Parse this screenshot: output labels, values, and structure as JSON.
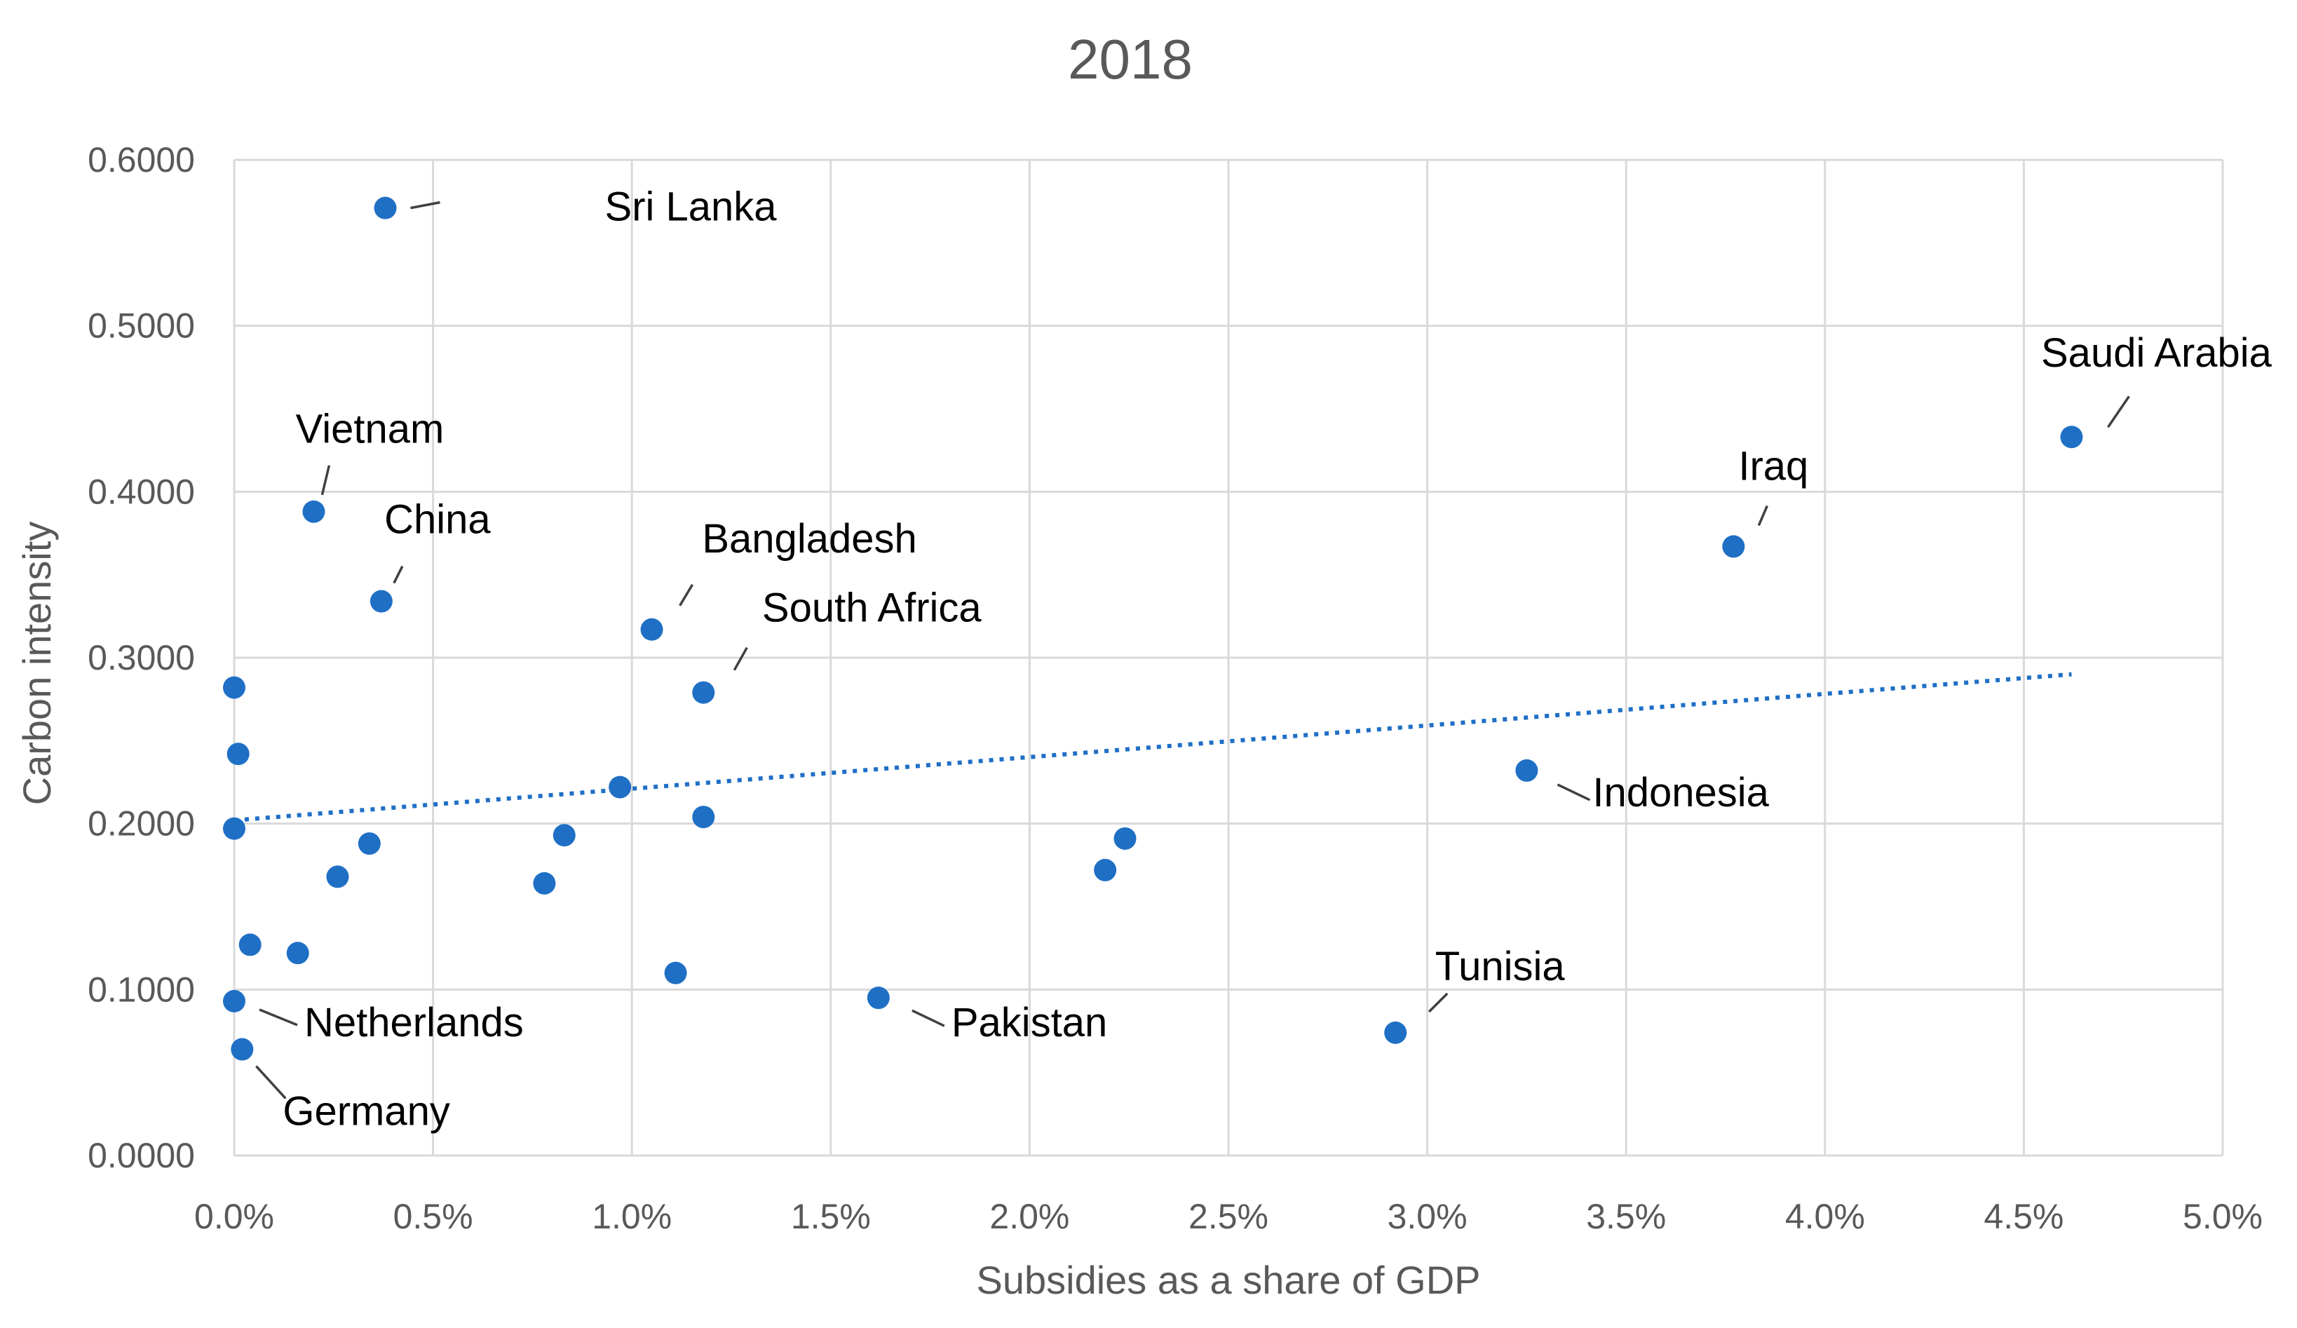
{
  "chart_data": {
    "type": "scatter",
    "title": "2018",
    "xlabel": "Subsidies as a share of GDP",
    "ylabel": "Carbon intensity",
    "xlim": [
      0,
      0.05
    ],
    "ylim": [
      0,
      0.6
    ],
    "x_ticks": [
      {
        "value": 0.0,
        "label": "0.0%"
      },
      {
        "value": 0.005,
        "label": "0.5%"
      },
      {
        "value": 0.01,
        "label": "1.0%"
      },
      {
        "value": 0.015,
        "label": "1.5%"
      },
      {
        "value": 0.02,
        "label": "2.0%"
      },
      {
        "value": 0.025,
        "label": "2.5%"
      },
      {
        "value": 0.03,
        "label": "3.0%"
      },
      {
        "value": 0.035,
        "label": "3.5%"
      },
      {
        "value": 0.04,
        "label": "4.0%"
      },
      {
        "value": 0.045,
        "label": "4.5%"
      },
      {
        "value": 0.05,
        "label": "5.0%"
      }
    ],
    "y_ticks": [
      {
        "value": 0.0,
        "label": "0.0000"
      },
      {
        "value": 0.1,
        "label": "0.1000"
      },
      {
        "value": 0.2,
        "label": "0.2000"
      },
      {
        "value": 0.3,
        "label": "0.3000"
      },
      {
        "value": 0.4,
        "label": "0.4000"
      },
      {
        "value": 0.5,
        "label": "0.5000"
      },
      {
        "value": 0.6,
        "label": "0.6000"
      }
    ],
    "grid": true,
    "legend": "none",
    "point_color": "#1f6fc5",
    "trendline": {
      "style": "dotted",
      "color": "#1f6fc5",
      "from": [
        0.0,
        0.202
      ],
      "to": [
        0.0462,
        0.29
      ]
    },
    "points": [
      {
        "x": 0.0038,
        "y": 0.571,
        "label": "Sri Lanka"
      },
      {
        "x": 0.002,
        "y": 0.388,
        "label": "Vietnam"
      },
      {
        "x": 0.0037,
        "y": 0.334,
        "label": "China"
      },
      {
        "x": 0.0105,
        "y": 0.317,
        "label": "Bangladesh"
      },
      {
        "x": 0.0118,
        "y": 0.279,
        "label": "South Africa"
      },
      {
        "x": 0.0462,
        "y": 0.433,
        "label": "Saudi Arabia"
      },
      {
        "x": 0.0377,
        "y": 0.367,
        "label": "Iraq"
      },
      {
        "x": 0.0325,
        "y": 0.232,
        "label": "Indonesia"
      },
      {
        "x": 0.0292,
        "y": 0.074,
        "label": "Tunisia"
      },
      {
        "x": 0.0162,
        "y": 0.095,
        "label": "Pakistan"
      },
      {
        "x": 0.0,
        "y": 0.093,
        "label": "Netherlands"
      },
      {
        "x": 0.0002,
        "y": 0.064,
        "label": "Germany"
      },
      {
        "x": 0.0,
        "y": 0.282,
        "label": ""
      },
      {
        "x": 0.0001,
        "y": 0.242,
        "label": ""
      },
      {
        "x": 0.0,
        "y": 0.197,
        "label": ""
      },
      {
        "x": 0.0004,
        "y": 0.127,
        "label": ""
      },
      {
        "x": 0.0016,
        "y": 0.122,
        "label": ""
      },
      {
        "x": 0.0026,
        "y": 0.168,
        "label": ""
      },
      {
        "x": 0.0034,
        "y": 0.188,
        "label": ""
      },
      {
        "x": 0.0078,
        "y": 0.164,
        "label": ""
      },
      {
        "x": 0.0083,
        "y": 0.193,
        "label": ""
      },
      {
        "x": 0.0097,
        "y": 0.222,
        "label": ""
      },
      {
        "x": 0.0111,
        "y": 0.11,
        "label": ""
      },
      {
        "x": 0.0118,
        "y": 0.204,
        "label": ""
      },
      {
        "x": 0.0219,
        "y": 0.172,
        "label": ""
      },
      {
        "x": 0.0224,
        "y": 0.191,
        "label": ""
      }
    ]
  }
}
